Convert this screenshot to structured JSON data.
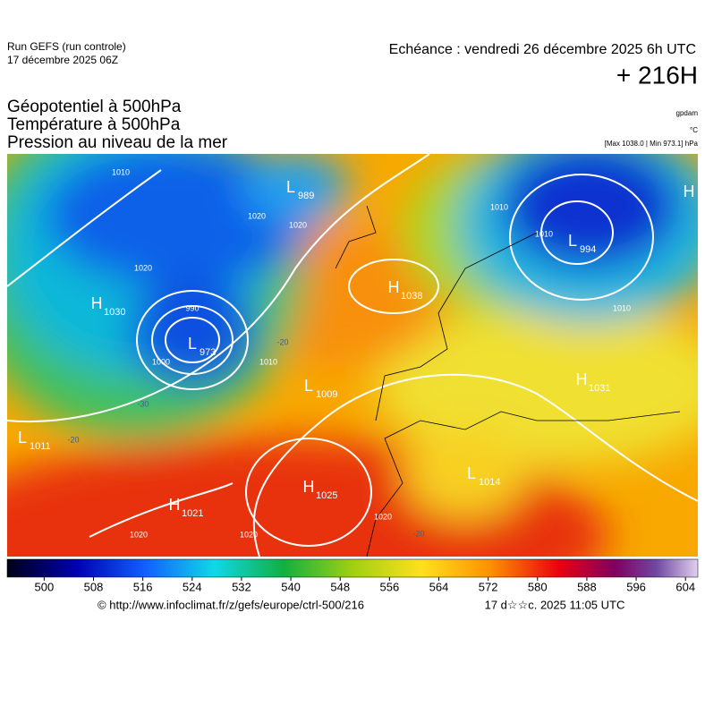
{
  "header": {
    "run": "Run GEFS (run controle)",
    "run_date": "17 décembre 2025 06Z",
    "valid": "Echéance : vendredi 26 décembre 2025 6h UTC",
    "lead": "+ 216H",
    "fields": [
      "Géopotentiel à 500hPa",
      "Température à 500hPa",
      "Pression au niveau de la mer"
    ],
    "units": [
      "gpdam",
      "°C",
      "[Max 1038.0 | Min 973.1] hPa"
    ]
  },
  "pressure_centers": [
    {
      "label": "H",
      "value": 1030
    },
    {
      "label": "L",
      "value": 973
    },
    {
      "label": "L",
      "value": 989
    },
    {
      "label": "H",
      "value": 1038
    },
    {
      "label": "L",
      "value": 994
    },
    {
      "label": "L",
      "value": 1009
    },
    {
      "label": "H",
      "value": 1031
    },
    {
      "label": "L",
      "value": 1011
    },
    {
      "label": "H",
      "value": 1025
    },
    {
      "label": "H",
      "value": 1021
    },
    {
      "label": "L",
      "value": 1014
    },
    {
      "label": "H"
    }
  ],
  "isobar_labels": [
    1010,
    1010,
    1010,
    1020,
    1000,
    990,
    1020,
    1020,
    1010,
    1020,
    1020,
    1010,
    1020
  ],
  "temperature_labels": [
    -20,
    -30,
    -20,
    -20
  ],
  "colorbar": {
    "range": [
      494,
      606
    ],
    "ticks": [
      500,
      508,
      516,
      524,
      532,
      540,
      548,
      556,
      564,
      572,
      580,
      588,
      596,
      604
    ]
  },
  "footer": {
    "source": "© http://www.infoclimat.fr/z/gefs/europe/ctrl-500/216",
    "generated": "17 d☆☆c. 2025 11:05 UTC"
  }
}
